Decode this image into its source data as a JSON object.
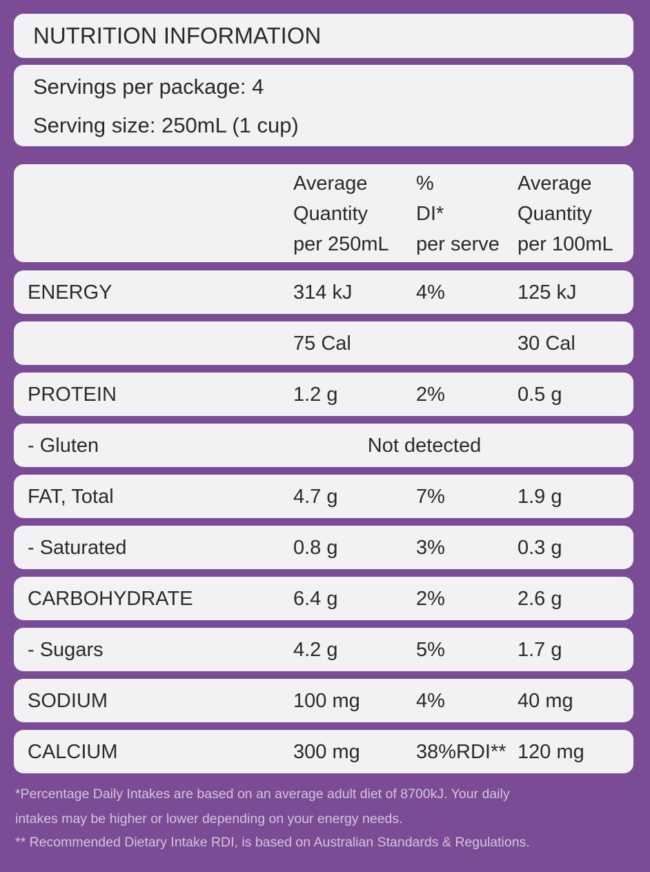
{
  "header": {
    "title": "NUTRITION INFORMATION",
    "servings_per_package": "Servings per package: 4",
    "serving_size": "Serving size: 250mL (1 cup)"
  },
  "table": {
    "columns": [
      [
        "Average",
        "Quantity",
        "per 250mL"
      ],
      [
        "%",
        "DI*",
        "per serve"
      ],
      [
        "Average",
        "Quantity",
        "per 100mL"
      ]
    ],
    "rows": [
      {
        "label": "ENERGY",
        "per_serve": "314 kJ",
        "di": "4%",
        "per_100": "125 kJ"
      },
      {
        "per_serve": "75 Cal",
        "per_100": "30 Cal"
      },
      {
        "label": "PROTEIN",
        "per_serve": "1.2 g",
        "di": "2%",
        "per_100": "0.5 g"
      },
      {
        "label": "- Gluten",
        "value": "Not detected"
      },
      {
        "label": "FAT, Total",
        "per_serve": "4.7 g",
        "di": "7%",
        "per_100": "1.9 g"
      },
      {
        "label": "- Saturated",
        "per_serve": "0.8 g",
        "di": "3%",
        "per_100": "0.3 g"
      },
      {
        "label": "CARBOHYDRATE",
        "per_serve": "6.4 g",
        "di": "2%",
        "per_100": "2.6 g"
      },
      {
        "label": "- Sugars",
        "per_serve": "4.2 g",
        "di": "5%",
        "per_100": "1.7 g"
      },
      {
        "label": "SODIUM",
        "per_serve": "100 mg",
        "di": "4%",
        "per_100": "40 mg"
      },
      {
        "label": "CALCIUM",
        "per_serve": "300 mg",
        "di": "38%RDI**",
        "per_100": "120 mg"
      }
    ]
  },
  "footnotes": [
    "*Percentage Daily Intakes are based on an average adult diet of 8700kJ. Your daily",
    "intakes may be higher or lower depending on your energy needs.",
    "** Recommended Dietary Intake RDI, is based on Australian Standards & Regulations."
  ]
}
